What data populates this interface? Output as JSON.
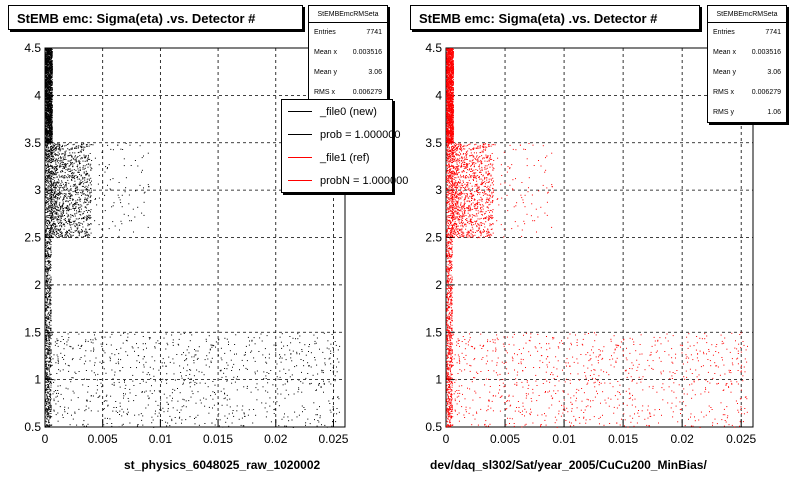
{
  "chart_data": [
    {
      "type": "scatter",
      "title": "StEMB emc: Sigma(eta) .vs. Detector #",
      "xlabel": "st_physics_6048025_raw_1020002",
      "ylabel": "",
      "xlim": [
        0,
        0.026
      ],
      "ylim": [
        0.5,
        4.5
      ],
      "xticks": [
        "0",
        "0.005",
        "0.01",
        "0.015",
        "0.02",
        "0.025"
      ],
      "yticks": [
        "0.5",
        "1",
        "1.5",
        "2",
        "2.5",
        "3",
        "3.5",
        "4",
        "4.5"
      ],
      "grid": true,
      "marker_color": "#000000",
      "regions": [
        {
          "x_range": [
            0,
            0.0006
          ],
          "y_range": [
            3.5,
            4.5
          ],
          "density": "very high"
        },
        {
          "x_range": [
            0,
            0.0005
          ],
          "y_range": [
            0.5,
            4.5
          ],
          "density": "very high"
        },
        {
          "x_range": [
            0.0005,
            0.004
          ],
          "y_range": [
            2.5,
            3.5
          ],
          "density": "high"
        },
        {
          "x_range": [
            0.004,
            0.009
          ],
          "y_range": [
            2.5,
            3.5
          ],
          "density": "low"
        },
        {
          "x_range": [
            0.0005,
            0.0255
          ],
          "y_range": [
            0.5,
            1.5
          ],
          "density": "sparse"
        }
      ],
      "stats": {
        "name": "StEMBEmcRMSeta",
        "rows": [
          {
            "label": "Entries",
            "value": "7741"
          },
          {
            "label": "Mean x",
            "value": "0.003516"
          },
          {
            "label": "Mean y",
            "value": "3.06"
          },
          {
            "label": "RMS x",
            "value": "0.006279"
          }
        ]
      },
      "legend": {
        "placement": "top-right",
        "entries": [
          {
            "label": "_file0 (new)",
            "color": "#000000"
          },
          {
            "label": "prob = 1.000000",
            "color": "#000000"
          },
          {
            "label": "_file1 (ref)",
            "color": "#ff0000"
          },
          {
            "label": "probN = 1.000000",
            "color": "#ff0000"
          }
        ]
      }
    },
    {
      "type": "scatter",
      "title": "StEMB emc: Sigma(eta) .vs. Detector #",
      "xlabel": "dev/daq_sl302/Sat/year_2005/CuCu200_MinBias/",
      "ylabel": "",
      "xlim": [
        0,
        0.026
      ],
      "ylim": [
        0.5,
        4.5
      ],
      "xticks": [
        "0",
        "0.005",
        "0.01",
        "0.015",
        "0.02",
        "0.025"
      ],
      "yticks": [
        "0.5",
        "1",
        "1.5",
        "2",
        "2.5",
        "3",
        "3.5",
        "4",
        "4.5"
      ],
      "grid": true,
      "marker_color": "#ff0000",
      "regions": [
        {
          "x_range": [
            0,
            0.0006
          ],
          "y_range": [
            3.5,
            4.5
          ],
          "density": "very high"
        },
        {
          "x_range": [
            0,
            0.0005
          ],
          "y_range": [
            0.5,
            4.5
          ],
          "density": "very high"
        },
        {
          "x_range": [
            0.0005,
            0.004
          ],
          "y_range": [
            2.5,
            3.5
          ],
          "density": "high"
        },
        {
          "x_range": [
            0.004,
            0.009
          ],
          "y_range": [
            2.5,
            3.5
          ],
          "density": "low"
        },
        {
          "x_range": [
            0.0005,
            0.0255
          ],
          "y_range": [
            0.5,
            1.5
          ],
          "density": "sparse"
        }
      ],
      "stats": {
        "name": "StEMBEmcRMSeta",
        "rows": [
          {
            "label": "Entries",
            "value": "7741"
          },
          {
            "label": "Mean x",
            "value": "0.003516"
          },
          {
            "label": "Mean y",
            "value": "3.06"
          },
          {
            "label": "RMS x",
            "value": "0.006279"
          },
          {
            "label": "RMS y",
            "value": "1.06"
          }
        ]
      }
    }
  ]
}
